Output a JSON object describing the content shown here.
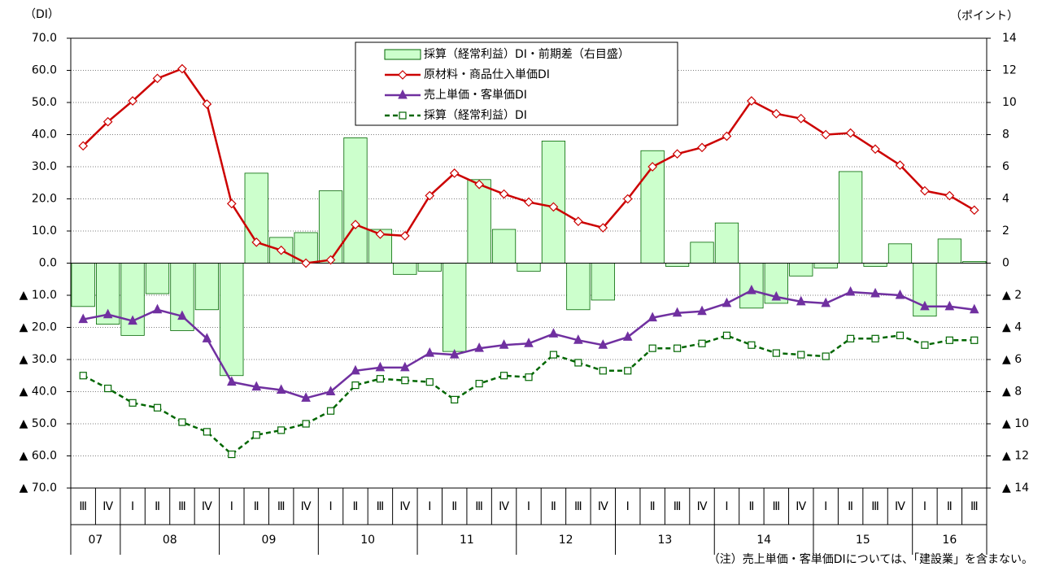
{
  "chart_data": {
    "type": "bar",
    "y_label": "（DI）",
    "y2_label": "（ポイント）",
    "note": "（注）売上単価・客単価DIについては、「建設業」を含まない。",
    "groups": [
      {
        "year": "07",
        "quarters": [
          "Ⅲ",
          "Ⅳ"
        ]
      },
      {
        "year": "08",
        "quarters": [
          "Ⅰ",
          "Ⅱ",
          "Ⅲ",
          "Ⅳ"
        ]
      },
      {
        "year": "09",
        "quarters": [
          "Ⅰ",
          "Ⅱ",
          "Ⅲ",
          "Ⅳ"
        ]
      },
      {
        "year": "10",
        "quarters": [
          "Ⅰ",
          "Ⅱ",
          "Ⅲ",
          "Ⅳ"
        ]
      },
      {
        "year": "11",
        "quarters": [
          "Ⅰ",
          "Ⅱ",
          "Ⅲ",
          "Ⅳ"
        ]
      },
      {
        "year": "12",
        "quarters": [
          "Ⅰ",
          "Ⅱ",
          "Ⅲ",
          "Ⅳ"
        ]
      },
      {
        "year": "13",
        "quarters": [
          "Ⅰ",
          "Ⅱ",
          "Ⅲ",
          "Ⅳ"
        ]
      },
      {
        "year": "14",
        "quarters": [
          "Ⅰ",
          "Ⅱ",
          "Ⅲ",
          "Ⅳ"
        ]
      },
      {
        "year": "15",
        "quarters": [
          "Ⅰ",
          "Ⅱ",
          "Ⅲ",
          "Ⅳ"
        ]
      },
      {
        "year": "16",
        "quarters": [
          "Ⅰ",
          "Ⅱ",
          "Ⅲ"
        ]
      }
    ],
    "ylim": [
      -70,
      70
    ],
    "yticks": [
      {
        "value": 70,
        "label": "70.0"
      },
      {
        "value": 60,
        "label": "60.0"
      },
      {
        "value": 50,
        "label": "50.0"
      },
      {
        "value": 40,
        "label": "40.0"
      },
      {
        "value": 30,
        "label": "30.0"
      },
      {
        "value": 20,
        "label": "20.0"
      },
      {
        "value": 10,
        "label": "10.0"
      },
      {
        "value": 0,
        "label": "0.0"
      },
      {
        "value": -10,
        "label": "▲ 10.0"
      },
      {
        "value": -20,
        "label": "▲ 20.0"
      },
      {
        "value": -30,
        "label": "▲ 30.0"
      },
      {
        "value": -40,
        "label": "▲ 40.0"
      },
      {
        "value": -50,
        "label": "▲ 50.0"
      },
      {
        "value": -60,
        "label": "▲ 60.0"
      },
      {
        "value": -70,
        "label": "▲ 70.0"
      }
    ],
    "y2lim": [
      -14,
      14
    ],
    "y2ticks": [
      14,
      12,
      10,
      8,
      6,
      4,
      2,
      0,
      {
        "value": -2,
        "label": "▲ 2"
      },
      {
        "value": -4,
        "label": "▲ 4"
      },
      {
        "value": -6,
        "label": "▲ 6"
      },
      {
        "value": -8,
        "label": "▲ 8"
      },
      {
        "value": -10,
        "label": "▲ 10"
      },
      {
        "value": -12,
        "label": "▲ 12"
      },
      {
        "value": -14,
        "label": "▲ 14"
      }
    ],
    "grid": true,
    "series": [
      {
        "name": "採算（経常利益）DI・前期差（右目盛）",
        "type": "bar",
        "axis": "y2",
        "color": "#ccffcc",
        "edge": "#006600",
        "values": [
          -2.7,
          -3.8,
          -4.5,
          -1.9,
          -4.2,
          -2.9,
          -7.0,
          5.6,
          1.6,
          1.9,
          4.5,
          7.8,
          2.1,
          -0.7,
          -0.5,
          -5.5,
          5.2,
          2.1,
          -0.5,
          7.6,
          -2.9,
          -2.3,
          0,
          7.0,
          -0.2,
          1.3,
          2.5,
          -2.8,
          -2.5,
          -0.8,
          -0.3,
          5.7,
          -0.2,
          1.2,
          -3.3,
          1.5,
          0.1
        ]
      },
      {
        "name": "原材料・商品仕入単価DI",
        "type": "line",
        "marker": "diamond",
        "dashed": false,
        "color": "#cc0000",
        "values": [
          36.5,
          44,
          50.5,
          57.5,
          60.5,
          49.5,
          18.5,
          6.5,
          4,
          0,
          1,
          12,
          9,
          8.5,
          21,
          28,
          24.5,
          21.5,
          19,
          17.5,
          13,
          11,
          20,
          30,
          34,
          36,
          39.5,
          50.5,
          46.5,
          45,
          40,
          40.5,
          35.5,
          30.5,
          22.5,
          21,
          16.5
        ]
      },
      {
        "name": "売上単価・客単価DI",
        "type": "line",
        "marker": "triangle",
        "dashed": false,
        "color": "#7030a0",
        "values": [
          -17.5,
          -16,
          -18,
          -14.5,
          -16.5,
          -23.5,
          -37,
          -38.5,
          -39.5,
          -42,
          -40,
          -33.5,
          -32.5,
          -32.5,
          -28,
          -28.5,
          -26.5,
          -25.5,
          -25,
          -22,
          -24,
          -25.5,
          -23,
          -17,
          -15.5,
          -15,
          -12.5,
          -8.5,
          -10.5,
          -12,
          -12.5,
          -9,
          -9.5,
          -10,
          -13.5,
          -13.5,
          -14.5
        ]
      },
      {
        "name": "採算（経常利益）DI",
        "type": "line",
        "marker": "square",
        "dashed": true,
        "color": "#006600",
        "values": [
          -35,
          -39,
          -43.5,
          -45,
          -49.5,
          -52.5,
          -59.5,
          -53.5,
          -52,
          -50,
          -46,
          -38,
          -36,
          -36.5,
          -37,
          -42.5,
          -37.5,
          -35,
          -35.5,
          -28.5,
          -31,
          -33.5,
          -33.5,
          -26.5,
          -26.5,
          -25,
          -22.5,
          -25.5,
          -28,
          -28.5,
          -29,
          -23.5,
          -23.5,
          -22.5,
          -25.5,
          -24,
          -24
        ]
      }
    ]
  }
}
